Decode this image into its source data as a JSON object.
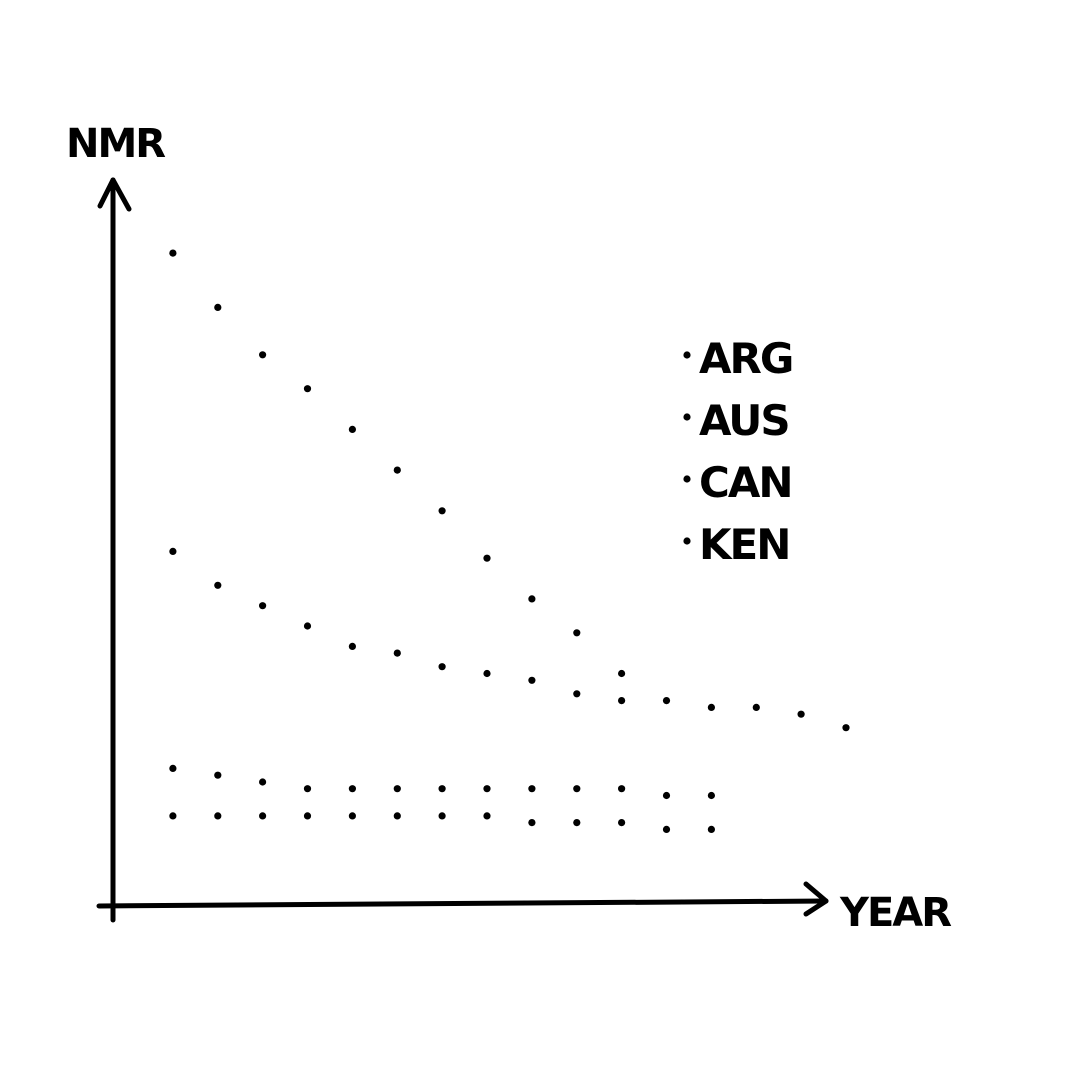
{
  "chart_data": {
    "type": "scatter",
    "title": "",
    "xlabel": "YEAR",
    "ylabel": "NMR",
    "grid": false,
    "legend_position": "right",
    "colors": {
      "ink": "#000000",
      "background": "#ffffff"
    },
    "xlim": [
      0,
      16
    ],
    "ylim": [
      0,
      100
    ],
    "series": [
      {
        "name": "ARG",
        "x": [
          1,
          2,
          3,
          4,
          5,
          6,
          7,
          8,
          9,
          10,
          11
        ],
        "y": [
          96,
          88,
          81,
          76,
          70,
          64,
          58,
          51,
          45,
          40,
          34
        ]
      },
      {
        "name": "AUS",
        "x": [
          1,
          2,
          3,
          4,
          5,
          6,
          7,
          8,
          9,
          10,
          11,
          12,
          13,
          14,
          15,
          16
        ],
        "y": [
          52,
          47,
          44,
          41,
          38,
          37,
          35,
          34,
          33,
          31,
          30,
          30,
          29,
          29,
          28,
          26
        ]
      },
      {
        "name": "CAN",
        "x": [
          1,
          2,
          3,
          4,
          5,
          6,
          7,
          8,
          9,
          10,
          11,
          12,
          13
        ],
        "y": [
          20,
          19,
          18,
          17,
          17,
          17,
          17,
          17,
          17,
          17,
          17,
          16,
          16
        ]
      },
      {
        "name": "KEN",
        "x": [
          1,
          2,
          3,
          4,
          5,
          6,
          7,
          8,
          9,
          10,
          11,
          12,
          13
        ],
        "y": [
          13,
          13,
          13,
          13,
          13,
          13,
          13,
          13,
          12,
          12,
          12,
          11,
          11
        ]
      }
    ]
  }
}
